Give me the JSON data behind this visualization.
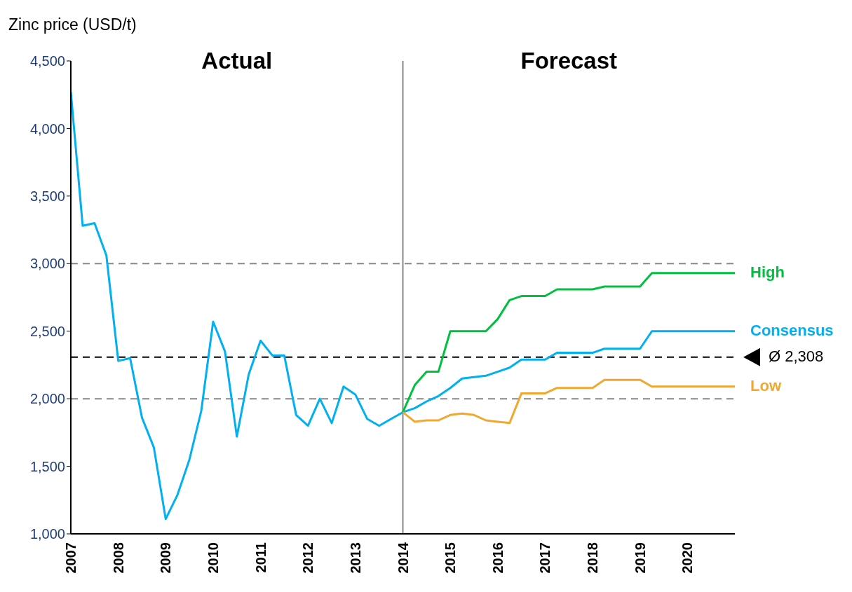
{
  "chart_data": {
    "type": "line",
    "ylabel": "Zinc price (USD/t)",
    "annotations": [
      "Actual",
      "Forecast"
    ],
    "xlim": [
      2007,
      2021
    ],
    "xticks": [
      2007,
      2008,
      2009,
      2010,
      2011,
      2012,
      2013,
      2014,
      2015,
      2016,
      2017,
      2018,
      2019,
      2020
    ],
    "ylim": [
      1000,
      4500
    ],
    "yticks": [
      {
        "value": 1000,
        "label": "1,000"
      },
      {
        "value": 1500,
        "label": "1,500"
      },
      {
        "value": 2000,
        "label": "2,000"
      },
      {
        "value": 2500,
        "label": "2,500"
      },
      {
        "value": 3000,
        "label": "3,000"
      },
      {
        "value": 3500,
        "label": "3,500"
      },
      {
        "value": 4000,
        "label": "4,000"
      },
      {
        "value": 4500,
        "label": "4,500"
      }
    ],
    "marker": "none",
    "line_style": "solid",
    "ref_lines": [
      {
        "axis": "y",
        "value": 2000,
        "label": null,
        "color": "#888888",
        "line_style": "dashed"
      },
      {
        "axis": "y",
        "value": 3000,
        "label": null,
        "color": "#888888",
        "line_style": "dashed"
      },
      {
        "axis": "y",
        "value": 2308,
        "label": "Ø 2,308",
        "color": "#000000",
        "line_style": "dashed"
      },
      {
        "axis": "x",
        "value": 2014,
        "label": null,
        "color": "#888888",
        "line_style": "solid"
      }
    ],
    "series": [
      {
        "name": "Consensus",
        "color": "#00b0f0",
        "x": [
          2007,
          2007.25,
          2007.5,
          2007.75,
          2008,
          2008.25,
          2008.5,
          2008.75,
          2009,
          2009.25,
          2009.5,
          2009.75,
          2010,
          2010.25,
          2010.5,
          2010.75,
          2011,
          2011.25,
          2011.5,
          2011.75,
          2012,
          2012.25,
          2012.5,
          2012.75,
          2013,
          2013.25,
          2013.5,
          2013.75,
          2014,
          2014.25,
          2014.5,
          2014.75,
          2015,
          2015.25,
          2015.5,
          2015.75,
          2016,
          2016.25,
          2016.5,
          2016.75,
          2017,
          2017.25,
          2017.5,
          2017.75,
          2018,
          2018.25,
          2018.5,
          2018.75,
          2019,
          2019.25,
          2019.5,
          2019.75,
          2020,
          2020.25,
          2020.5,
          2020.75,
          2021
        ],
        "values": [
          4270,
          3280,
          3300,
          3060,
          2280,
          2300,
          1860,
          1640,
          1110,
          1290,
          1550,
          1910,
          2570,
          2350,
          1720,
          2180,
          2430,
          2320,
          2320,
          1880,
          1800,
          2000,
          1820,
          2090,
          2030,
          1850,
          1800,
          1850,
          1900,
          1930,
          1980,
          2020,
          2080,
          2150,
          2160,
          2170,
          2200,
          2230,
          2290,
          2290,
          2290,
          2340,
          2340,
          2340,
          2340,
          2370,
          2370,
          2370,
          2370,
          2500,
          2500,
          2500,
          2500,
          2500,
          2500,
          2500,
          2500
        ]
      },
      {
        "name": "High",
        "color": "#00c040",
        "x": [
          2014,
          2014.25,
          2014.5,
          2014.75,
          2015,
          2015.25,
          2015.5,
          2015.75,
          2016,
          2016.25,
          2016.5,
          2016.75,
          2017,
          2017.25,
          2017.5,
          2017.75,
          2018,
          2018.25,
          2018.5,
          2018.75,
          2019,
          2019.25,
          2019.5,
          2019.75,
          2020,
          2020.25,
          2020.5,
          2020.75,
          2021
        ],
        "values": [
          1900,
          2100,
          2200,
          2200,
          2500,
          2500,
          2500,
          2500,
          2590,
          2730,
          2760,
          2760,
          2760,
          2810,
          2810,
          2810,
          2810,
          2830,
          2830,
          2830,
          2830,
          2930,
          2930,
          2930,
          2930,
          2930,
          2930,
          2930,
          2930
        ]
      },
      {
        "name": "Low",
        "color": "#f0a830",
        "x": [
          2014,
          2014.25,
          2014.5,
          2014.75,
          2015,
          2015.25,
          2015.5,
          2015.75,
          2016,
          2016.25,
          2016.5,
          2016.75,
          2017,
          2017.25,
          2017.5,
          2017.75,
          2018,
          2018.25,
          2018.5,
          2018.75,
          2019,
          2019.25,
          2019.5,
          2019.75,
          2020,
          2020.25,
          2020.5,
          2020.75,
          2021
        ],
        "values": [
          1900,
          1830,
          1840,
          1840,
          1880,
          1890,
          1880,
          1840,
          1830,
          1820,
          2040,
          2040,
          2040,
          2080,
          2080,
          2080,
          2080,
          2140,
          2140,
          2140,
          2140,
          2090,
          2090,
          2090,
          2090,
          2090,
          2090,
          2090,
          2090
        ]
      }
    ]
  }
}
